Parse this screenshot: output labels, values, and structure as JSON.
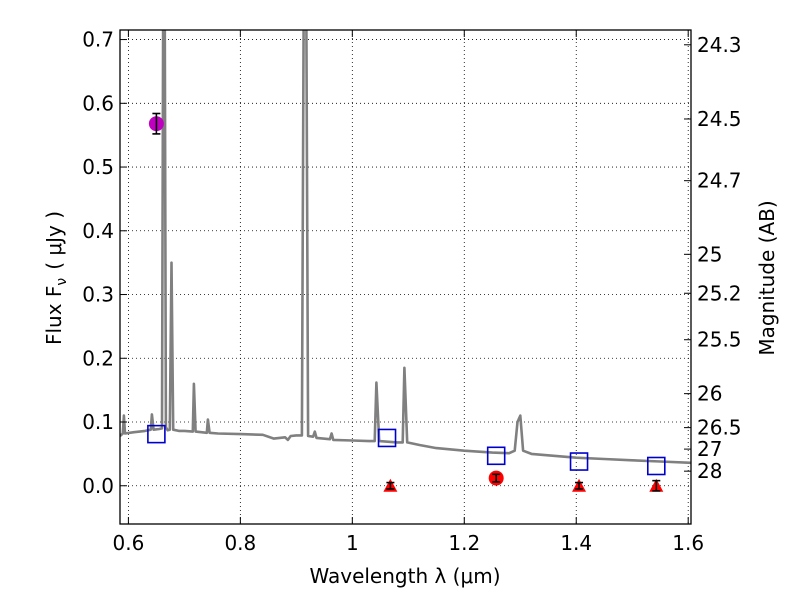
{
  "chart_data": {
    "type": "scatter",
    "xlabel": "Wavelength  λ (μm)",
    "ylabel_left": "Flux  F",
    "ylabel_left_sub": "ν",
    "ylabel_left_unit": "( μJy )",
    "ylabel_right": "Magnitude (AB)",
    "xlim": [
      0.585,
      1.605
    ],
    "ylim": [
      -0.06,
      0.715
    ],
    "grid": true,
    "x_ticks": [
      {
        "value": 0.6,
        "label": "0.6"
      },
      {
        "value": 0.8,
        "label": "0.8"
      },
      {
        "value": 1.0,
        "label": "1"
      },
      {
        "value": 1.2,
        "label": "1.2"
      },
      {
        "value": 1.4,
        "label": "1.4"
      },
      {
        "value": 1.6,
        "label": "1.6"
      }
    ],
    "y_ticks": [
      {
        "value": 0.0,
        "label": "0.0"
      },
      {
        "value": 0.1,
        "label": "0.1"
      },
      {
        "value": 0.2,
        "label": "0.2"
      },
      {
        "value": 0.3,
        "label": "0.3"
      },
      {
        "value": 0.4,
        "label": "0.4"
      },
      {
        "value": 0.5,
        "label": "0.5"
      },
      {
        "value": 0.6,
        "label": "0.6"
      },
      {
        "value": 0.7,
        "label": "0.7"
      }
    ],
    "right_ticks": [
      {
        "flux": 0.6918,
        "label": "24.3"
      },
      {
        "flux": 0.5754,
        "label": "24.5"
      },
      {
        "flux": 0.4786,
        "label": "24.7"
      },
      {
        "flux": 0.3631,
        "label": "25"
      },
      {
        "flux": 0.302,
        "label": "25.2"
      },
      {
        "flux": 0.2291,
        "label": "25.5"
      },
      {
        "flux": 0.1445,
        "label": "26"
      },
      {
        "flux": 0.0912,
        "label": "26.5"
      },
      {
        "flux": 0.0575,
        "label": "27"
      },
      {
        "flux": 0.0229,
        "label": "28"
      }
    ],
    "model_spectrum": {
      "color": "#808080",
      "points": [
        [
          0.585,
          0.078
        ],
        [
          0.59,
          0.082
        ],
        [
          0.592,
          0.11
        ],
        [
          0.594,
          0.082
        ],
        [
          0.61,
          0.084
        ],
        [
          0.63,
          0.086
        ],
        [
          0.64,
          0.088
        ],
        [
          0.642,
          0.112
        ],
        [
          0.645,
          0.088
        ],
        [
          0.655,
          0.089
        ],
        [
          0.66,
          0.09
        ],
        [
          0.662,
          0.72
        ],
        [
          0.665,
          0.72
        ],
        [
          0.667,
          0.092
        ],
        [
          0.67,
          0.087
        ],
        [
          0.674,
          0.088
        ],
        [
          0.677,
          0.35
        ],
        [
          0.68,
          0.088
        ],
        [
          0.69,
          0.086
        ],
        [
          0.7,
          0.086
        ],
        [
          0.715,
          0.085
        ],
        [
          0.717,
          0.16
        ],
        [
          0.72,
          0.085
        ],
        [
          0.73,
          0.084
        ],
        [
          0.74,
          0.083
        ],
        [
          0.742,
          0.104
        ],
        [
          0.745,
          0.083
        ],
        [
          0.76,
          0.082
        ],
        [
          0.8,
          0.081
        ],
        [
          0.84,
          0.08
        ],
        [
          0.86,
          0.074
        ],
        [
          0.88,
          0.076
        ],
        [
          0.885,
          0.072
        ],
        [
          0.89,
          0.078
        ],
        [
          0.9,
          0.079
        ],
        [
          0.91,
          0.079
        ],
        [
          0.913,
          0.72
        ],
        [
          0.918,
          0.72
        ],
        [
          0.921,
          0.078
        ],
        [
          0.93,
          0.077
        ],
        [
          0.933,
          0.085
        ],
        [
          0.936,
          0.075
        ],
        [
          0.96,
          0.073
        ],
        [
          0.963,
          0.082
        ],
        [
          0.966,
          0.072
        ],
        [
          1.0,
          0.071
        ],
        [
          1.03,
          0.07
        ],
        [
          1.04,
          0.07
        ],
        [
          1.043,
          0.162
        ],
        [
          1.048,
          0.07
        ],
        [
          1.08,
          0.068
        ],
        [
          1.09,
          0.068
        ],
        [
          1.093,
          0.185
        ],
        [
          1.098,
          0.068
        ],
        [
          1.12,
          0.064
        ],
        [
          1.15,
          0.059
        ],
        [
          1.2,
          0.055
        ],
        [
          1.25,
          0.052
        ],
        [
          1.28,
          0.051
        ],
        [
          1.29,
          0.055
        ],
        [
          1.295,
          0.1
        ],
        [
          1.3,
          0.11
        ],
        [
          1.305,
          0.055
        ],
        [
          1.32,
          0.05
        ],
        [
          1.4,
          0.044
        ],
        [
          1.45,
          0.042
        ],
        [
          1.5,
          0.04
        ],
        [
          1.55,
          0.038
        ],
        [
          1.605,
          0.036
        ]
      ]
    },
    "model_photometry": {
      "marker": "open-square",
      "color": "#0000cc",
      "points": [
        {
          "x": 0.65,
          "y": 0.081
        },
        {
          "x": 1.062,
          "y": 0.075
        },
        {
          "x": 1.257,
          "y": 0.047
        },
        {
          "x": 1.405,
          "y": 0.038
        },
        {
          "x": 1.543,
          "y": 0.031
        }
      ]
    },
    "detection_optical": {
      "marker": "circle",
      "color": "#c000c0",
      "points": [
        {
          "x": 0.65,
          "y": 0.568,
          "err": 0.016
        }
      ]
    },
    "detection_nir": {
      "marker": "circle",
      "color": "#ff0000",
      "points": [
        {
          "x": 1.257,
          "y": 0.012,
          "err": 0.006
        }
      ]
    },
    "upper_limits": {
      "marker": "triangle-up",
      "color": "#ff0000",
      "points": [
        {
          "x": 1.068,
          "y": 0.0,
          "err": 0.005
        },
        {
          "x": 1.405,
          "y": 0.0,
          "err": 0.005
        },
        {
          "x": 1.543,
          "y": 0.0,
          "err": 0.008
        }
      ]
    }
  }
}
